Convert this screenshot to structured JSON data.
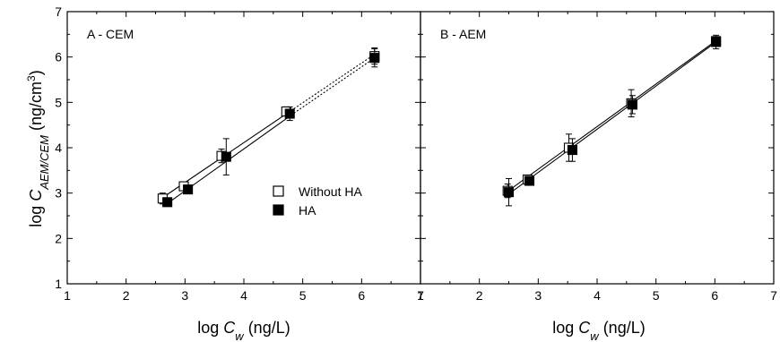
{
  "chart_data": [
    {
      "type": "scatter",
      "panel_label": "A - CEM",
      "xlim": [
        1,
        7
      ],
      "ylim": [
        1,
        7
      ],
      "xticks": [
        1,
        2,
        3,
        4,
        5,
        6,
        7
      ],
      "yticks": [
        1,
        2,
        3,
        4,
        5,
        6,
        7
      ],
      "legend_position": "center-right",
      "series": [
        {
          "name": "Without HA",
          "marker": "open-square",
          "x": [
            2.62,
            2.98,
            3.62,
            4.72,
            6.22
          ],
          "y": [
            2.88,
            3.15,
            3.82,
            4.8,
            6.02
          ],
          "err": [
            0.12,
            0.07,
            0.15,
            0.1,
            0.18
          ],
          "fit": {
            "x1": 2.62,
            "y1": 2.9,
            "x2": 4.85,
            "y2": 4.86,
            "x3": 6.22,
            "y3": 6.06
          }
        },
        {
          "name": "HA",
          "marker": "filled-square",
          "x": [
            2.7,
            3.05,
            3.7,
            4.78,
            6.22
          ],
          "y": [
            2.8,
            3.08,
            3.8,
            4.75,
            5.98
          ],
          "err": [
            0.05,
            0.05,
            0.4,
            0.15,
            0.2
          ],
          "fit": {
            "x1": 2.7,
            "y1": 2.77,
            "x2": 4.85,
            "y2": 4.76,
            "x3": 6.22,
            "y3": 5.98
          }
        }
      ]
    },
    {
      "type": "scatter",
      "panel_label": "B - AEM",
      "xlim": [
        1,
        7
      ],
      "ylim": [
        1,
        7
      ],
      "xticks": [
        1,
        2,
        3,
        4,
        5,
        6,
        7
      ],
      "yticks": [
        1,
        2,
        3,
        4,
        5,
        6,
        7
      ],
      "series": [
        {
          "name": "Without HA",
          "marker": "open-square",
          "x": [
            2.48,
            2.82,
            3.52,
            4.58,
            6.02
          ],
          "y": [
            3.05,
            3.3,
            4.0,
            4.98,
            6.35
          ],
          "err": [
            0.15,
            0.08,
            0.3,
            0.3,
            0.1
          ],
          "fit": {
            "x1": 2.48,
            "y1": 3.04,
            "x2": 6.02,
            "y2": 6.36
          }
        },
        {
          "name": "HA",
          "marker": "filled-square",
          "x": [
            2.5,
            2.85,
            3.58,
            4.6,
            6.02
          ],
          "y": [
            3.02,
            3.27,
            3.95,
            4.95,
            6.33
          ],
          "err": [
            0.3,
            0.05,
            0.25,
            0.2,
            0.15
          ],
          "fit": {
            "x1": 2.5,
            "y1": 2.98,
            "x2": 6.02,
            "y2": 6.33
          }
        }
      ]
    }
  ],
  "axis_titles": {
    "y_prefix": "log ",
    "y_var": "C",
    "y_sub": "AEM/CEM",
    "y_unit": " (ng/cm",
    "y_unit_sup": "3",
    "y_unit_close": ")",
    "x_prefix": "log ",
    "x_var": "C",
    "x_sub": "w",
    "x_unit": " (ng/L)"
  },
  "legend": [
    {
      "label": "Without HA",
      "marker": "open-square"
    },
    {
      "label": "HA",
      "marker": "filled-square"
    }
  ]
}
